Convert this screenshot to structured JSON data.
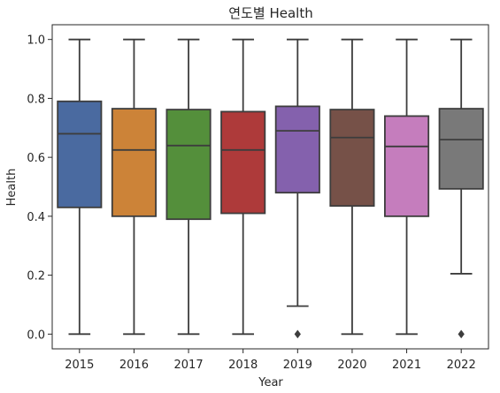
{
  "chart_data": {
    "type": "box",
    "title": "연도별 Health",
    "xlabel": "Year",
    "ylabel": "Health",
    "ylim": [
      -0.05,
      1.05
    ],
    "yticks": [
      "0.0",
      "0.2",
      "0.4",
      "0.6",
      "0.8",
      "1.0"
    ],
    "categories": [
      "2015",
      "2016",
      "2017",
      "2018",
      "2019",
      "2020",
      "2021",
      "2022"
    ],
    "boxes": [
      {
        "category": "2015",
        "whisker_low": 0.0,
        "q1": 0.43,
        "median": 0.68,
        "q3": 0.79,
        "whisker_high": 1.0,
        "outliers": [],
        "color": "#4a6aa0"
      },
      {
        "category": "2016",
        "whisker_low": 0.0,
        "q1": 0.4,
        "median": 0.625,
        "q3": 0.765,
        "whisker_high": 1.0,
        "outliers": [],
        "color": "#cc8338"
      },
      {
        "category": "2017",
        "whisker_low": 0.0,
        "q1": 0.39,
        "median": 0.64,
        "q3": 0.762,
        "whisker_high": 1.0,
        "outliers": [],
        "color": "#548f3b"
      },
      {
        "category": "2018",
        "whisker_low": 0.0,
        "q1": 0.41,
        "median": 0.625,
        "q3": 0.755,
        "whisker_high": 1.0,
        "outliers": [],
        "color": "#ae3a3a"
      },
      {
        "category": "2019",
        "whisker_low": 0.095,
        "q1": 0.48,
        "median": 0.69,
        "q3": 0.773,
        "whisker_high": 1.0,
        "outliers": [
          0.0
        ],
        "color": "#8461ad"
      },
      {
        "category": "2020",
        "whisker_low": 0.0,
        "q1": 0.435,
        "median": 0.667,
        "q3": 0.762,
        "whisker_high": 1.0,
        "outliers": [],
        "color": "#765148"
      },
      {
        "category": "2021",
        "whisker_low": 0.0,
        "q1": 0.4,
        "median": 0.637,
        "q3": 0.74,
        "whisker_high": 1.0,
        "outliers": [],
        "color": "#c57dbd"
      },
      {
        "category": "2022",
        "whisker_low": 0.205,
        "q1": 0.493,
        "median": 0.66,
        "q3": 0.765,
        "whisker_high": 1.0,
        "outliers": [
          0.0
        ],
        "color": "#797979"
      }
    ],
    "line_color": "#3d3d3d",
    "grid": false,
    "legend": "none"
  }
}
